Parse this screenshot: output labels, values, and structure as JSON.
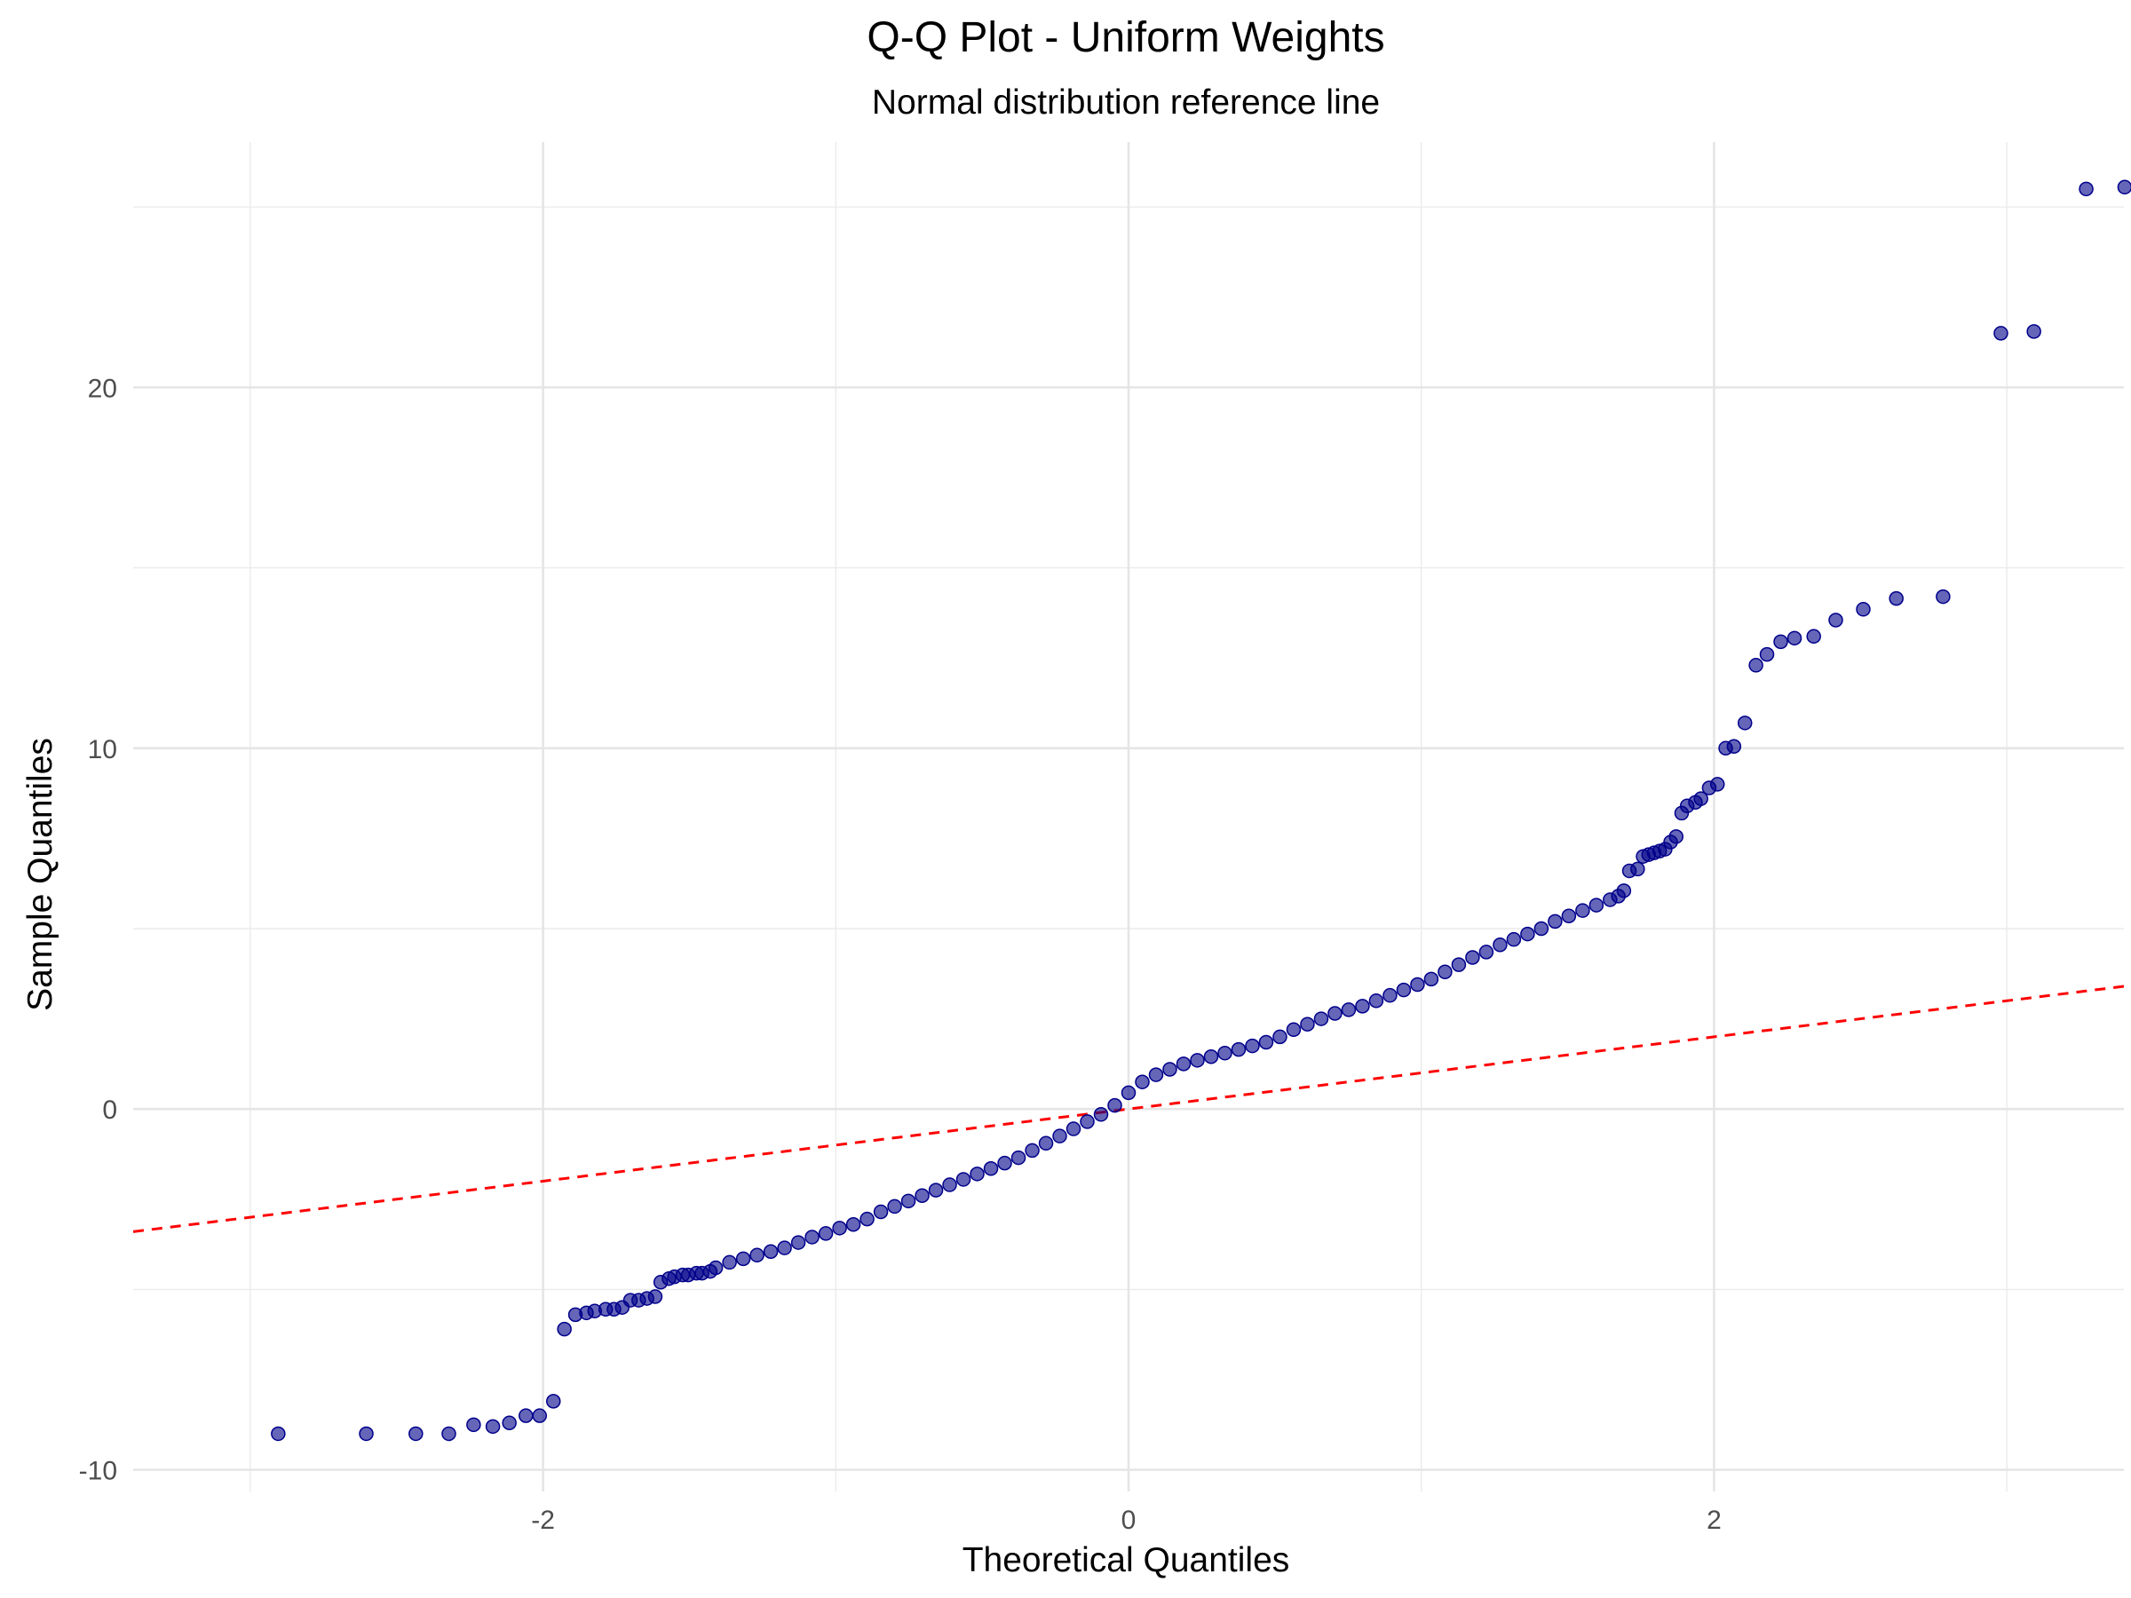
{
  "chart_data": {
    "type": "scatter",
    "title": "Q-Q Plot - Uniform Weights",
    "subtitle": "Normal distribution reference line",
    "xlabel": "Theoretical Quantiles",
    "ylabel": "Sample Quantiles",
    "xlim": [
      -3.4,
      3.4
    ],
    "ylim": [
      -10.6,
      26.8
    ],
    "x_ticks": [
      -2,
      0,
      2
    ],
    "x_tick_labels": [
      "-2",
      "0",
      "2"
    ],
    "x_minor_ticks": [
      -3,
      -1,
      1,
      3
    ],
    "y_ticks": [
      -10,
      0,
      10,
      20
    ],
    "y_tick_labels": [
      "-10",
      "0",
      "10",
      "20"
    ],
    "y_minor_ticks": [
      -5,
      5,
      15,
      25
    ],
    "grid": true,
    "legend": "none",
    "point_color": "#00008B",
    "reference_line": {
      "slope": 1,
      "intercept": 0,
      "color": "#FF0000",
      "style": "dashed"
    },
    "points": [
      [
        -3.09,
        -9.0
      ],
      [
        -2.77,
        -9.0
      ],
      [
        -2.59,
        -9.0
      ],
      [
        -2.47,
        -9.0
      ],
      [
        -2.38,
        -8.75
      ],
      [
        -2.31,
        -8.8
      ],
      [
        -2.25,
        -8.7
      ],
      [
        -2.19,
        -8.5
      ],
      [
        -2.14,
        -8.5
      ],
      [
        -2.09,
        -8.1
      ],
      [
        -2.05,
        -6.1
      ],
      [
        -2.01,
        -5.7
      ],
      [
        -1.97,
        -5.65
      ],
      [
        -1.94,
        -5.6
      ],
      [
        -1.9,
        -5.55
      ],
      [
        -1.87,
        -5.55
      ],
      [
        -1.84,
        -5.5
      ],
      [
        -1.81,
        -5.3
      ],
      [
        -1.78,
        -5.3
      ],
      [
        -1.75,
        -5.25
      ],
      [
        -1.72,
        -5.2
      ],
      [
        -1.7,
        -4.8
      ],
      [
        -1.67,
        -4.7
      ],
      [
        -1.65,
        -4.65
      ],
      [
        -1.62,
        -4.6
      ],
      [
        -1.6,
        -4.6
      ],
      [
        -1.57,
        -4.55
      ],
      [
        -1.55,
        -4.55
      ],
      [
        -1.52,
        -4.5
      ],
      [
        -1.5,
        -4.4
      ],
      [
        -1.45,
        -4.25
      ],
      [
        -1.4,
        -4.15
      ],
      [
        -1.35,
        -4.05
      ],
      [
        -1.3,
        -3.95
      ],
      [
        -1.25,
        -3.85
      ],
      [
        -1.2,
        -3.7
      ],
      [
        -1.15,
        -3.55
      ],
      [
        -1.1,
        -3.45
      ],
      [
        -1.05,
        -3.3
      ],
      [
        -1.0,
        -3.2
      ],
      [
        -0.95,
        -3.05
      ],
      [
        -0.9,
        -2.85
      ],
      [
        -0.85,
        -2.7
      ],
      [
        -0.8,
        -2.55
      ],
      [
        -0.75,
        -2.4
      ],
      [
        -0.7,
        -2.25
      ],
      [
        -0.65,
        -2.1
      ],
      [
        -0.6,
        -1.95
      ],
      [
        -0.55,
        -1.8
      ],
      [
        -0.5,
        -1.65
      ],
      [
        -0.45,
        -1.5
      ],
      [
        -0.4,
        -1.35
      ],
      [
        -0.35,
        -1.15
      ],
      [
        -0.3,
        -0.95
      ],
      [
        -0.25,
        -0.75
      ],
      [
        -0.2,
        -0.55
      ],
      [
        -0.15,
        -0.35
      ],
      [
        -0.1,
        -0.15
      ],
      [
        -0.05,
        0.1
      ],
      [
        0.0,
        0.45
      ],
      [
        0.05,
        0.75
      ],
      [
        0.1,
        0.95
      ],
      [
        0.15,
        1.1
      ],
      [
        0.2,
        1.25
      ],
      [
        0.25,
        1.35
      ],
      [
        0.3,
        1.45
      ],
      [
        0.35,
        1.55
      ],
      [
        0.4,
        1.65
      ],
      [
        0.45,
        1.75
      ],
      [
        0.5,
        1.85
      ],
      [
        0.55,
        2.0
      ],
      [
        0.6,
        2.2
      ],
      [
        0.65,
        2.35
      ],
      [
        0.7,
        2.5
      ],
      [
        0.75,
        2.65
      ],
      [
        0.8,
        2.75
      ],
      [
        0.85,
        2.85
      ],
      [
        0.9,
        3.0
      ],
      [
        0.95,
        3.15
      ],
      [
        1.0,
        3.3
      ],
      [
        1.05,
        3.45
      ],
      [
        1.1,
        3.6
      ],
      [
        1.15,
        3.8
      ],
      [
        1.2,
        4.0
      ],
      [
        1.25,
        4.2
      ],
      [
        1.3,
        4.35
      ],
      [
        1.35,
        4.55
      ],
      [
        1.4,
        4.7
      ],
      [
        1.45,
        4.85
      ],
      [
        1.5,
        5.0
      ],
      [
        1.55,
        5.2
      ],
      [
        1.6,
        5.35
      ],
      [
        1.65,
        5.5
      ],
      [
        1.7,
        5.65
      ],
      [
        1.75,
        5.8
      ],
      [
        1.78,
        5.9
      ],
      [
        1.8,
        6.05
      ],
      [
        1.82,
        6.6
      ],
      [
        1.85,
        6.65
      ],
      [
        1.87,
        7.0
      ],
      [
        1.89,
        7.05
      ],
      [
        1.91,
        7.1
      ],
      [
        1.93,
        7.15
      ],
      [
        1.95,
        7.2
      ],
      [
        1.97,
        7.4
      ],
      [
        1.99,
        7.55
      ],
      [
        2.01,
        8.2
      ],
      [
        2.03,
        8.4
      ],
      [
        2.06,
        8.5
      ],
      [
        2.08,
        8.6
      ],
      [
        2.11,
        8.9
      ],
      [
        2.14,
        9.0
      ],
      [
        2.17,
        10.0
      ],
      [
        2.2,
        10.05
      ],
      [
        2.24,
        10.7
      ],
      [
        2.28,
        12.3
      ],
      [
        2.32,
        12.6
      ],
      [
        2.37,
        12.95
      ],
      [
        2.42,
        13.05
      ],
      [
        2.49,
        13.1
      ],
      [
        2.57,
        13.55
      ],
      [
        2.67,
        13.85
      ],
      [
        2.79,
        14.15
      ],
      [
        2.96,
        14.2
      ],
      [
        3.17,
        21.5
      ],
      [
        3.29,
        21.55
      ],
      [
        3.48,
        25.5
      ],
      [
        3.62,
        25.55
      ]
    ]
  }
}
